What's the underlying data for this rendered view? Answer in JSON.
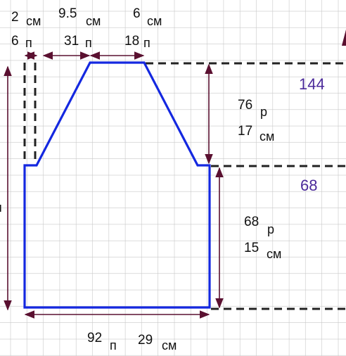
{
  "labels": {
    "left_width": {
      "number": "2",
      "unit": "см"
    },
    "left_stitches": {
      "number": "6",
      "unit": "п"
    },
    "slope_width": {
      "number": "9.5",
      "unit": "см"
    },
    "slope_stitches": {
      "number": "31",
      "unit": "п"
    },
    "top_width": {
      "number": "6",
      "unit": "см"
    },
    "top_stitches": {
      "number": "18",
      "unit": "п"
    },
    "top_row": "144",
    "upper_rows": {
      "number": "76",
      "unit": "р"
    },
    "upper_height": {
      "number": "17",
      "unit": "см"
    },
    "middle_row": "68",
    "lower_rows": {
      "number": "68",
      "unit": "р"
    },
    "lower_height": {
      "number": "15",
      "unit": "см"
    },
    "bottom_stitches": {
      "number": "92",
      "unit": "п"
    },
    "bottom_width": {
      "number": "29",
      "unit": "см"
    },
    "edge_fragment": "п"
  }
}
